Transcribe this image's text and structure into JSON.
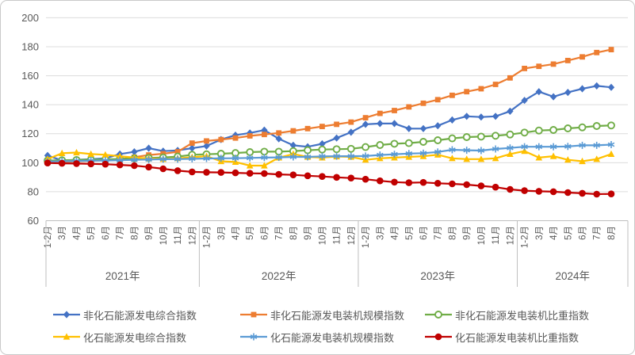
{
  "chart_data": {
    "type": "line",
    "title": "",
    "y_axis": {
      "min": 60,
      "max": 200,
      "ticks": [
        200,
        180,
        160,
        140,
        120,
        100,
        80,
        60
      ]
    },
    "x_axis": {
      "groups": [
        {
          "label": "2021年",
          "months": [
            "1-2月",
            "3月",
            "4月",
            "5月",
            "6月",
            "7月",
            "8月",
            "9月",
            "10月",
            "11月",
            "12月"
          ]
        },
        {
          "label": "2022年",
          "months": [
            "1-2月",
            "3月",
            "4月",
            "5月",
            "6月",
            "7月",
            "8月",
            "9月",
            "10月",
            "11月",
            "12月"
          ]
        },
        {
          "label": "2023年",
          "months": [
            "1-2月",
            "3月",
            "4月",
            "5月",
            "6月",
            "7月",
            "8月",
            "9月",
            "10月",
            "11月",
            "12月"
          ]
        },
        {
          "label": "2024年",
          "months": [
            "1-2月",
            "3月",
            "4月",
            "5月",
            "6月",
            "7月",
            "8月"
          ]
        }
      ]
    },
    "series": [
      {
        "name": "非化石能源发电综合指数",
        "color": "#4472C4",
        "marker": "diamond",
        "values": [
          105,
          101.5,
          102,
          102.5,
          103,
          106,
          107.5,
          110,
          108,
          108.5,
          110,
          111.5,
          116,
          119,
          120.5,
          122.5,
          116.5,
          112,
          111,
          113,
          117,
          121,
          126.5,
          127,
          127,
          123.5,
          123.5,
          125.5,
          129.5,
          132,
          131.5,
          132,
          135.5,
          143,
          149,
          145.5,
          148.5,
          151,
          153,
          152
        ]
      },
      {
        "name": "非化石能源发电装机规模指数",
        "color": "#ED7D31",
        "marker": "square",
        "values": [
          100,
          100.5,
          101,
          101.3,
          101.7,
          102.3,
          103.8,
          105.3,
          106.2,
          107.5,
          113.5,
          115,
          116,
          117,
          118.5,
          119.5,
          120.5,
          122,
          123.5,
          125,
          126.5,
          128,
          131,
          134,
          136,
          138.5,
          141,
          143.5,
          146.5,
          149,
          151,
          154,
          158.5,
          165,
          166.5,
          168,
          170.5,
          173,
          176,
          178
        ]
      },
      {
        "name": "非化石能源发电装机比重指数",
        "color": "#70AD47",
        "marker": "circle-open",
        "values": [
          101.5,
          101.7,
          101.9,
          102.1,
          102.3,
          102.6,
          103,
          103.3,
          103.6,
          104.2,
          105.5,
          105.8,
          106.2,
          106.7,
          107.3,
          107.6,
          107.6,
          108,
          108.6,
          109.1,
          109.3,
          109.6,
          110.8,
          112.2,
          113.1,
          113.5,
          114.4,
          115.5,
          116.8,
          117.7,
          118,
          118.6,
          119.5,
          120.8,
          122.2,
          122.6,
          123.7,
          124.4,
          125.3,
          125.7
        ]
      },
      {
        "name": "化石能源发电综合指数",
        "color": "#FFC000",
        "marker": "triangle",
        "values": [
          102.5,
          106.5,
          107,
          106,
          105.5,
          104.5,
          103.5,
          103,
          102.5,
          103,
          103.8,
          104.5,
          101,
          100.5,
          98,
          98,
          103.5,
          106,
          104,
          103.5,
          104.3,
          104,
          102,
          103,
          103.5,
          104,
          104.5,
          105.5,
          103,
          102.5,
          102.5,
          103,
          106,
          108,
          103.5,
          104.5,
          102,
          101,
          102.5,
          106
        ]
      },
      {
        "name": "化石能源发电装机规模指数",
        "color": "#5B9BD5",
        "marker": "asterisk",
        "values": [
          100.8,
          101,
          101.2,
          101.4,
          101.5,
          101.7,
          102,
          102.2,
          102.4,
          102.5,
          102.7,
          102.9,
          103,
          103.1,
          103.3,
          103.5,
          103.7,
          104,
          104,
          104.4,
          104.5,
          104.5,
          104.6,
          105.3,
          105.8,
          106.3,
          106.6,
          107.4,
          108.9,
          108.6,
          108.4,
          109.5,
          110.2,
          111,
          111,
          111,
          111.2,
          112,
          112,
          112.5
        ]
      },
      {
        "name": "化石能源发电装机比重指数",
        "color": "#C00000",
        "marker": "circle",
        "values": [
          99.8,
          99.6,
          99.4,
          99.2,
          99,
          98.5,
          98,
          97,
          95.8,
          94.5,
          93.7,
          93.4,
          93.3,
          93,
          92.7,
          92.5,
          91.9,
          91.6,
          91,
          90.5,
          89.9,
          89.4,
          88.6,
          87.5,
          86.6,
          86.2,
          86.4,
          85.8,
          85.4,
          84.9,
          84,
          83.1,
          81.6,
          80.7,
          80.3,
          80,
          79.4,
          78.9,
          78.3,
          78.5
        ]
      }
    ],
    "styles": {
      "grid_color": "#DCDCDC",
      "axis_line_color": "#BFBFBF",
      "text_color": "#595959"
    },
    "legend_position": "bottom"
  }
}
